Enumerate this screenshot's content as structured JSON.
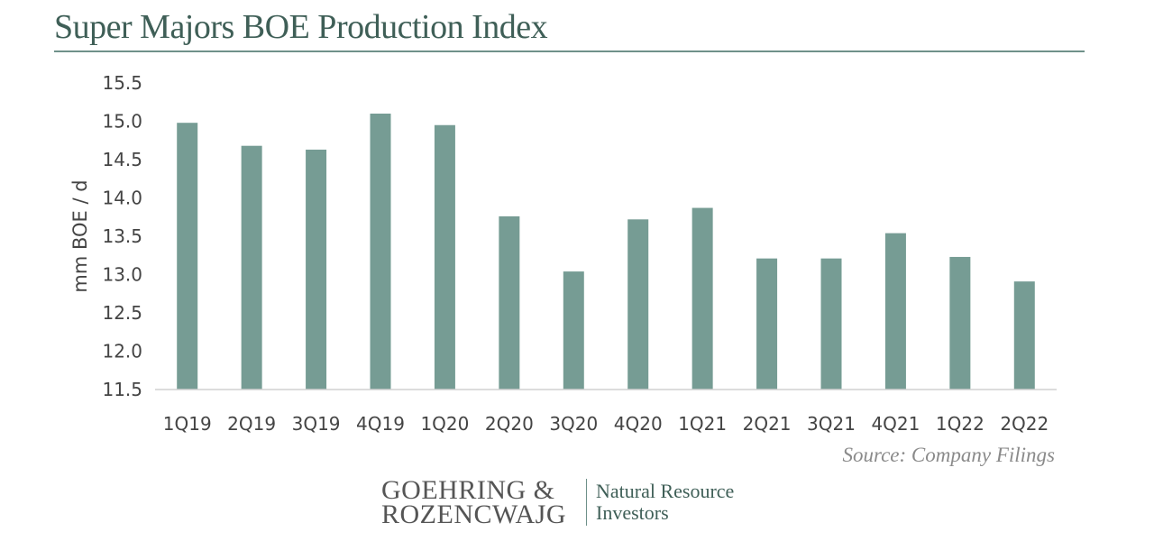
{
  "title": "Super Majors BOE Production Index",
  "source": "Source: Company Filings",
  "logo": {
    "line1": "GOEHRING &",
    "line2": "ROZENCWAJG",
    "tagline1": "Natural Resource",
    "tagline2": "Investors"
  },
  "colors": {
    "bar": "#769c94",
    "title": "#3f5f57",
    "rule": "#6f918a"
  },
  "chart_data": {
    "type": "bar",
    "title": "Super Majors BOE Production Index",
    "xlabel": "",
    "ylabel": "mm BOE / d",
    "ylim": [
      11.5,
      15.5
    ],
    "yticks": [
      "15.5",
      "15.0",
      "14.5",
      "14.0",
      "13.5",
      "13.0",
      "12.5",
      "12.0",
      "11.5"
    ],
    "categories": [
      "1Q19",
      "2Q19",
      "3Q19",
      "4Q19",
      "1Q20",
      "2Q20",
      "3Q20",
      "4Q20",
      "1Q21",
      "2Q21",
      "3Q21",
      "4Q21",
      "1Q22",
      "2Q22"
    ],
    "values": [
      14.98,
      14.68,
      14.63,
      15.1,
      14.95,
      13.76,
      13.04,
      13.72,
      13.87,
      13.21,
      13.21,
      13.54,
      13.23,
      12.91
    ],
    "grid": false,
    "legend": "none"
  }
}
